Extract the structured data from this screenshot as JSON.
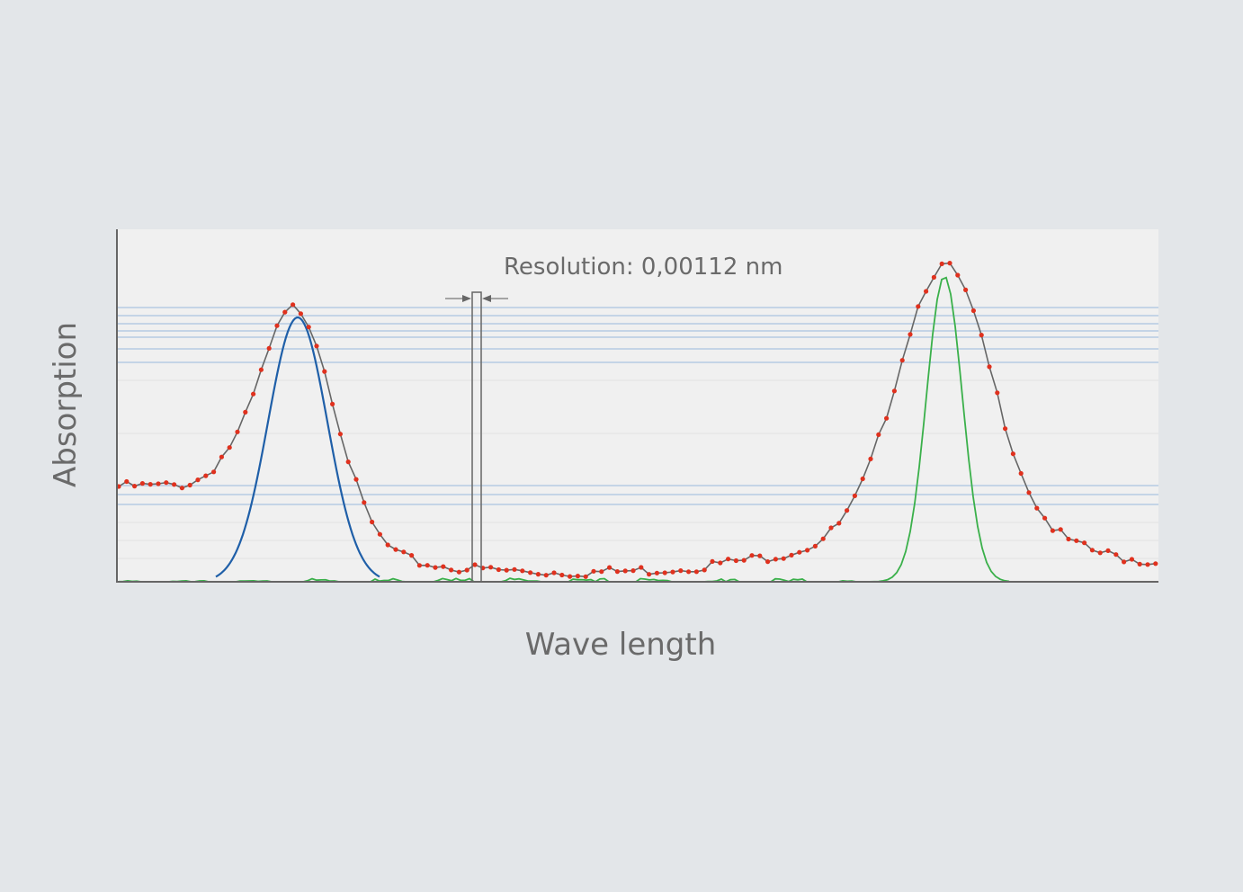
{
  "annotation": "Resolution: 0,00112 nm",
  "x_axis_label": "Wave length",
  "y_axis_label": "Absorption"
}
